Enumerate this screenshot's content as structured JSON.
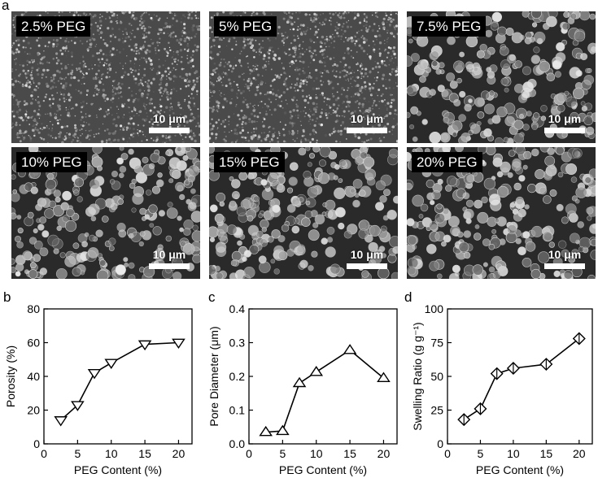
{
  "panel_letters": {
    "a": "a",
    "b": "b",
    "c": "c",
    "d": "d"
  },
  "sem_images": [
    {
      "label": "2.5% PEG",
      "scale": "10 μm",
      "texture": "fine"
    },
    {
      "label": "5% PEG",
      "scale": "10 μm",
      "texture": "fine"
    },
    {
      "label": "7.5% PEG",
      "scale": "10 μm",
      "texture": "coarse"
    },
    {
      "label": "10% PEG",
      "scale": "10 μm",
      "texture": "coarse"
    },
    {
      "label": "15% PEG",
      "scale": "10 μm",
      "texture": "coarse"
    },
    {
      "label": "20% PEG",
      "scale": "10 μm",
      "texture": "coarse"
    }
  ],
  "chart_data": [
    {
      "type": "line",
      "marker": "triangle-down",
      "xlabel": "PEG Content (%)",
      "ylabel": "Porosity (%)",
      "x": [
        2.5,
        5,
        7.5,
        10,
        15,
        20
      ],
      "series": [
        {
          "values": [
            14,
            23,
            42,
            48,
            59,
            60
          ]
        }
      ],
      "xlim": [
        0,
        22
      ],
      "ylim": [
        0,
        80
      ],
      "xticks": [
        0,
        5,
        10,
        15,
        20
      ],
      "yticks": [
        0,
        20,
        40,
        60,
        80
      ],
      "xtick_labels": [
        "0",
        "5",
        "10",
        "15",
        "20"
      ],
      "ytick_labels": [
        "0",
        "20",
        "40",
        "60",
        "80"
      ]
    },
    {
      "type": "line",
      "marker": "triangle-up",
      "xlabel": "PEG Content (%)",
      "ylabel": "Pore Diameter (μm)",
      "x": [
        2.5,
        5,
        7.5,
        10,
        15,
        20
      ],
      "series": [
        {
          "values": [
            0.035,
            0.038,
            0.18,
            0.213,
            0.278,
            0.195
          ]
        }
      ],
      "xlim": [
        0,
        22
      ],
      "ylim": [
        0,
        0.4
      ],
      "xticks": [
        0,
        5,
        10,
        15,
        20
      ],
      "yticks": [
        0,
        0.1,
        0.2,
        0.3,
        0.4
      ],
      "xtick_labels": [
        "0",
        "5",
        "10",
        "15",
        "20"
      ],
      "ytick_labels": [
        "0.0",
        "0.1",
        "0.2",
        "0.3",
        "0.4"
      ]
    },
    {
      "type": "line",
      "marker": "diamond-cross",
      "xlabel": "PEG Content (%)",
      "ylabel": "Swelling Ratio (g g⁻¹)",
      "x": [
        2.5,
        5,
        7.5,
        10,
        15,
        20
      ],
      "series": [
        {
          "values": [
            18,
            26,
            52,
            56,
            59,
            78
          ]
        }
      ],
      "xlim": [
        0,
        22
      ],
      "ylim": [
        0,
        100
      ],
      "xticks": [
        0,
        5,
        10,
        15,
        20
      ],
      "yticks": [
        0,
        25,
        50,
        75,
        100
      ],
      "xtick_labels": [
        "0",
        "5",
        "10",
        "15",
        "20"
      ],
      "ytick_labels": [
        "0",
        "25",
        "50",
        "75",
        "100"
      ]
    }
  ]
}
